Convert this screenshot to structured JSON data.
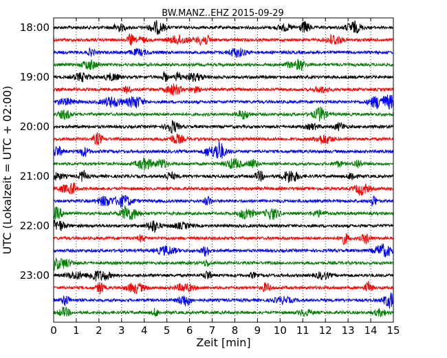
{
  "chart_data": {
    "type": "line",
    "title": "BW.MANZ..EHZ 2015-09-29",
    "xlabel": "Zeit  [min]",
    "ylabel": "UTC (Lokalzeit = UTC + 02:00)",
    "xlim": [
      0,
      15
    ],
    "x_ticks": [
      "0",
      "1",
      "2",
      "3",
      "4",
      "5",
      "6",
      "7",
      "8",
      "9",
      "10",
      "11",
      "12",
      "13",
      "14",
      "15"
    ],
    "y_ticks": [
      "18:00",
      "19:00",
      "20:00",
      "21:00",
      "22:00",
      "23:00"
    ],
    "grid": "vertical dotted at each minute",
    "row_interval_minutes": 15,
    "first_row": "18:00",
    "row_count": 24,
    "color_cycle": [
      "#000000",
      "#ff0000",
      "#0000ff",
      "#008000"
    ],
    "trace_amplitude_relative": 0.12
  }
}
